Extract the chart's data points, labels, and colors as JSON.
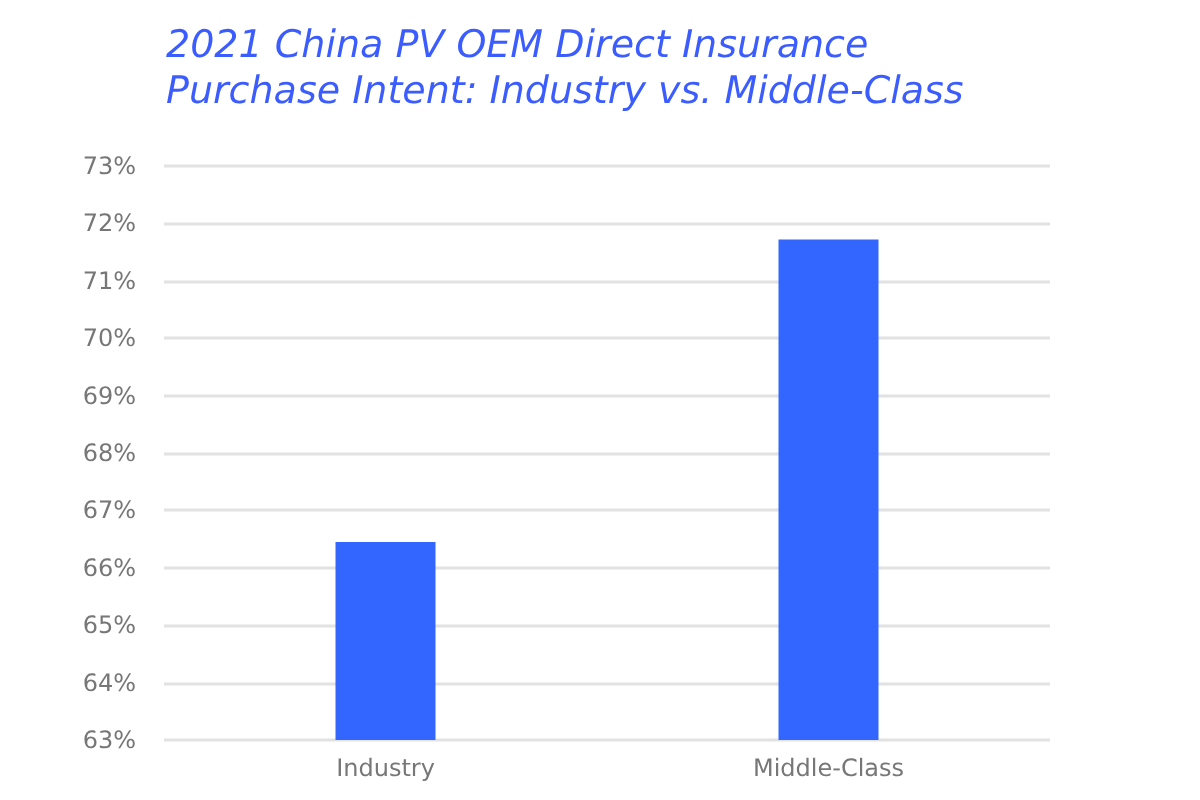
{
  "chart_data": {
    "type": "bar",
    "title": "2021 China PV OEM Direct Insurance\nPurchase Intent: Industry vs. Middle-Class",
    "categories": [
      "Industry",
      "Middle-Class"
    ],
    "values": [
      66.45,
      71.72
    ],
    "color": "#3366ff",
    "ylim": [
      63,
      73
    ],
    "yticks": [
      {
        "value": 63,
        "label": "63%"
      },
      {
        "value": 64,
        "label": "64%"
      },
      {
        "value": 65,
        "label": "65%"
      },
      {
        "value": 66,
        "label": "66%"
      },
      {
        "value": 67,
        "label": "67%"
      },
      {
        "value": 68,
        "label": "68%"
      },
      {
        "value": 69,
        "label": "69%"
      },
      {
        "value": 70,
        "label": "70%"
      },
      {
        "value": 71,
        "label": "71%"
      },
      {
        "value": 72,
        "label": "72%"
      },
      {
        "value": 73,
        "label": "73%"
      }
    ],
    "grid": "y"
  }
}
